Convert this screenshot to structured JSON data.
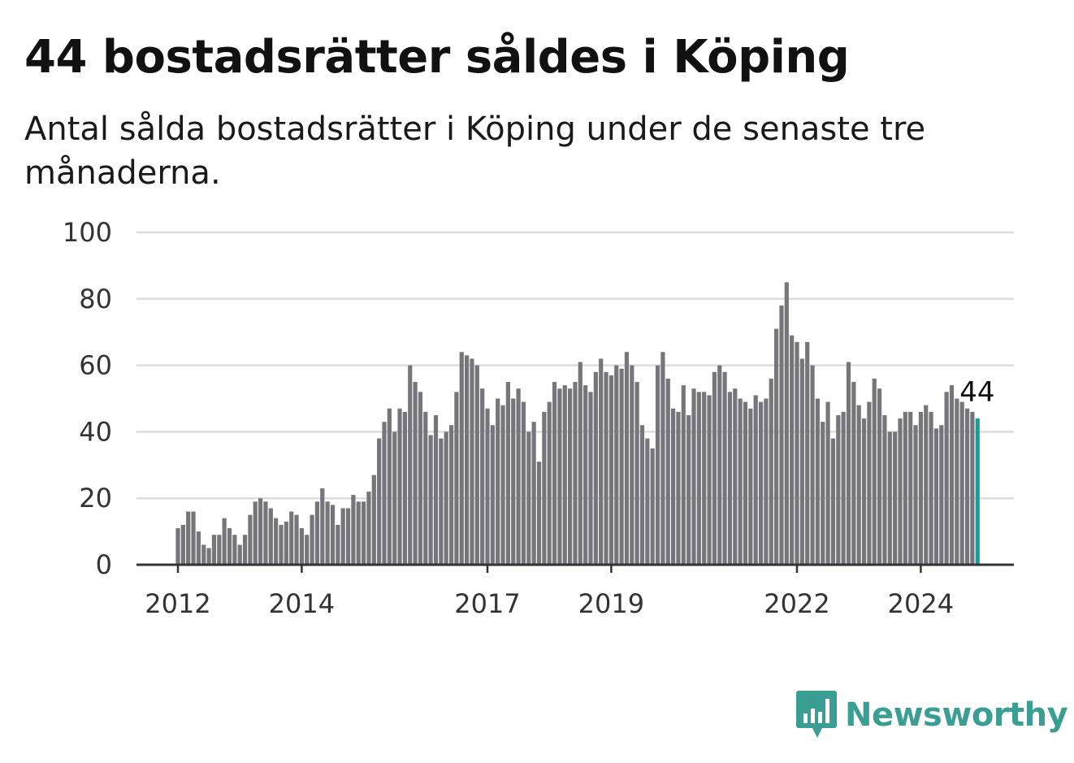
{
  "header": {
    "title": "44 bostadsrätter såldes i Köping",
    "subtitle": "Antal sålda bostadsrätter i Köping under de senaste tre månaderna."
  },
  "brand": {
    "name": "Newsworthy",
    "icon": "bar-chart-speech-bubble-icon",
    "color": "#3b9e93"
  },
  "chart_data": {
    "type": "bar",
    "x_start": "2012-01",
    "y_ticks": [
      0,
      20,
      40,
      60,
      80,
      100
    ],
    "ylim": [
      0,
      100
    ],
    "x_ticks": [
      {
        "label": "2012",
        "index": 0
      },
      {
        "label": "2014",
        "index": 24
      },
      {
        "label": "2017",
        "index": 60
      },
      {
        "label": "2019",
        "index": 84
      },
      {
        "label": "2022",
        "index": 120
      },
      {
        "label": "2024",
        "index": 144
      }
    ],
    "grid": true,
    "bar_color": "#76767a",
    "highlight_color": "#15a19b",
    "end_label": "44",
    "values": [
      11,
      12,
      16,
      16,
      10,
      6,
      5,
      9,
      9,
      14,
      11,
      9,
      6,
      9,
      15,
      19,
      20,
      19,
      17,
      14,
      12,
      13,
      16,
      15,
      11,
      9,
      15,
      19,
      23,
      19,
      18,
      12,
      17,
      17,
      21,
      19,
      19,
      22,
      27,
      38,
      43,
      47,
      40,
      47,
      46,
      60,
      55,
      52,
      46,
      39,
      45,
      38,
      40,
      42,
      52,
      64,
      63,
      62,
      60,
      53,
      47,
      42,
      50,
      48,
      55,
      50,
      53,
      49,
      40,
      43,
      31,
      46,
      49,
      55,
      53,
      54,
      53,
      55,
      61,
      54,
      52,
      58,
      62,
      58,
      57,
      60,
      59,
      64,
      60,
      55,
      42,
      38,
      35,
      60,
      64,
      56,
      47,
      46,
      54,
      45,
      53,
      52,
      52,
      51,
      58,
      60,
      58,
      52,
      53,
      50,
      49,
      47,
      51,
      49,
      50,
      56,
      71,
      78,
      85,
      69,
      67,
      62,
      67,
      60,
      50,
      43,
      49,
      38,
      45,
      46,
      61,
      55,
      48,
      44,
      49,
      56,
      53,
      45,
      40,
      40,
      44,
      46,
      46,
      42,
      46,
      48,
      46,
      41,
      42,
      52,
      54,
      50,
      49,
      47,
      46,
      44
    ]
  }
}
